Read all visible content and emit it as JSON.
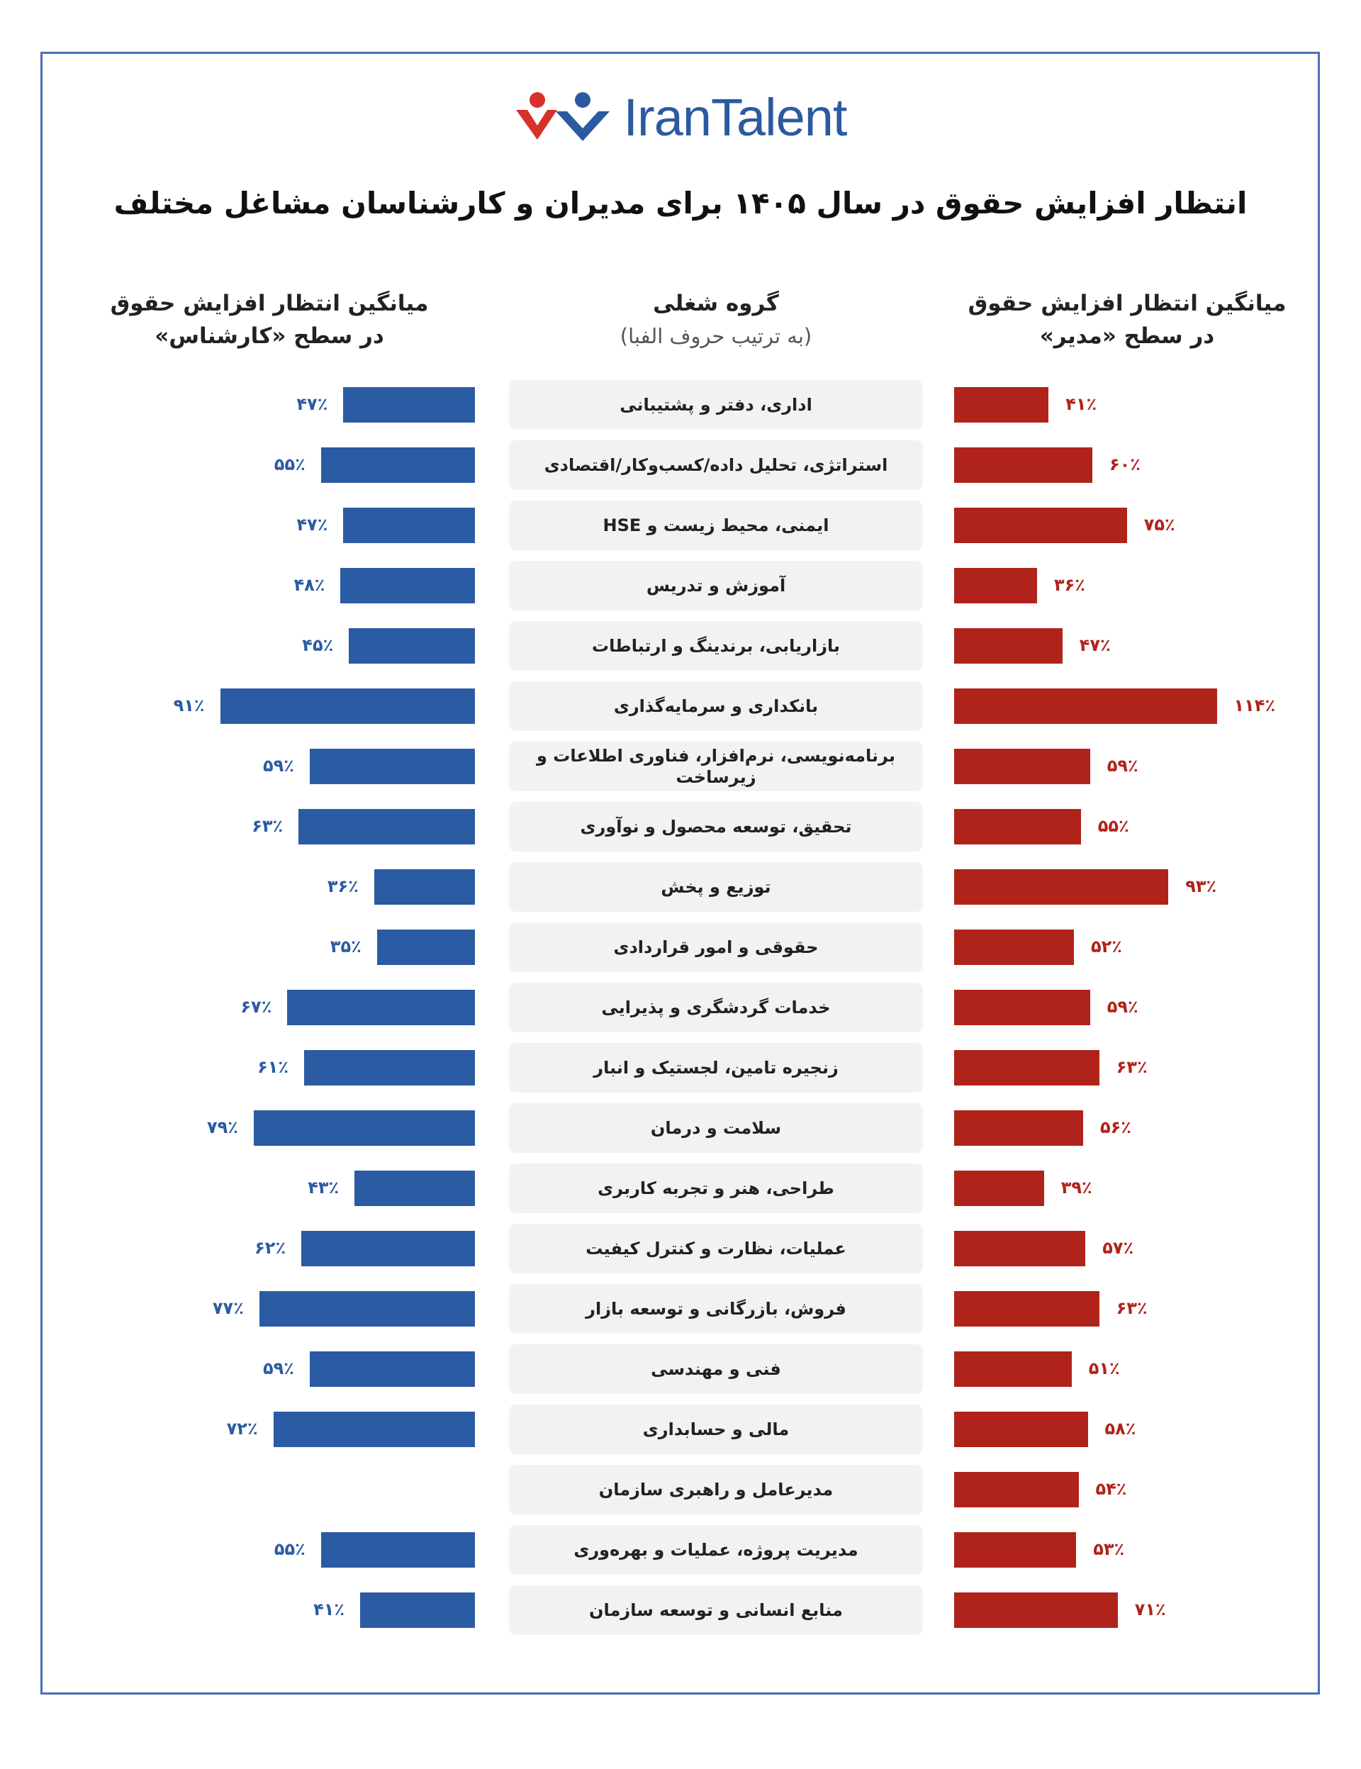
{
  "logo": {
    "text": "IranTalent"
  },
  "chart_data": {
    "type": "bar",
    "title": "انتظار افزایش حقوق در سال ۱۴۰۵ برای مدیران و کارشناسان مشاغل مختلف",
    "category_header": {
      "title": "گروه شغلی",
      "subtitle": "(به ترتیب حروف الفبا)"
    },
    "categories": [
      "اداری، دفتر و پشتیبانی",
      "استراتژی، تحلیل داده/کسب‌وکار/اقتصادی",
      "ایمنی، محیط زیست و HSE",
      "آموزش و تدریس",
      "بازاریابی، برندینگ و ارتباطات",
      "بانکداری و سرمایه‌گذاری",
      "برنامه‌نویسی، نرم‌افزار، فناوری اطلاعات و زیرساخت",
      "تحقیق، توسعه محصول و نوآوری",
      "توزیع و پخش",
      "حقوقی و امور قراردادی",
      "خدمات گردشگری و پذیرایی",
      "زنجیره تامین، لجستیک و انبار",
      "سلامت و درمان",
      "طراحی، هنر و تجربه کاربری",
      "عملیات، نظارت و کنترل کیفیت",
      "فروش، بازرگانی و توسعه بازار",
      "فنی و مهندسی",
      "مالی و حسابداری",
      "مدیرعامل و راهبری سازمان",
      "مدیریت پروژه، عملیات و بهره‌وری",
      "منابع انسانی و توسعه سازمان"
    ],
    "series": [
      {
        "name": "میانگین انتظار افزایش حقوق در سطح «کارشناس»",
        "title_line1": "میانگین انتظار افزایش حقوق",
        "title_line2": "در سطح «کارشناس»",
        "color": "#2b5ba3",
        "side": "left",
        "values": [
          47,
          55,
          47,
          48,
          45,
          91,
          59,
          63,
          36,
          35,
          67,
          61,
          79,
          43,
          62,
          77,
          59,
          72,
          null,
          55,
          41
        ],
        "labels": [
          "۴۷٪",
          "۵۵٪",
          "۴۷٪",
          "۴۸٪",
          "۴۵٪",
          "۹۱٪",
          "۵۹٪",
          "۶۳٪",
          "۳۶٪",
          "۳۵٪",
          "۶۷٪",
          "۶۱٪",
          "۷۹٪",
          "۴۳٪",
          "۶۲٪",
          "۷۷٪",
          "۵۹٪",
          "۷۲٪",
          "",
          "۵۵٪",
          "۴۱٪"
        ]
      },
      {
        "name": "میانگین انتظار افزایش حقوق در سطح «مدیر»",
        "title_line1": "میانگین انتظار افزایش حقوق",
        "title_line2": "در سطح «مدیر»",
        "color": "#b0231a",
        "side": "right",
        "values": [
          41,
          60,
          75,
          36,
          47,
          114,
          59,
          55,
          93,
          52,
          59,
          63,
          56,
          39,
          57,
          63,
          51,
          58,
          54,
          53,
          71
        ],
        "labels": [
          "۴۱٪",
          "۶۰٪",
          "۷۵٪",
          "۳۶٪",
          "۴۷٪",
          "۱۱۴٪",
          "۵۹٪",
          "۵۵٪",
          "۹۳٪",
          "۵۲٪",
          "۵۹٪",
          "۶۳٪",
          "۵۶٪",
          "۳۹٪",
          "۵۷٪",
          "۶۳٪",
          "۵۱٪",
          "۵۸٪",
          "۵۴٪",
          "۵۳٪",
          "۷۱٪"
        ]
      }
    ]
  }
}
